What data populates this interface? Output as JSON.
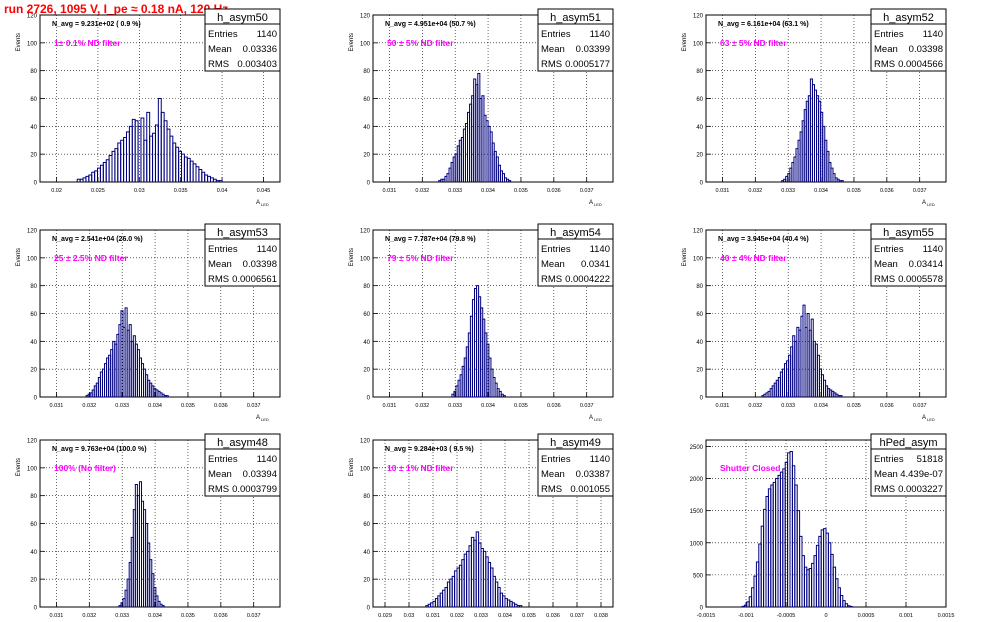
{
  "run_title": "run 2726,  1095 V, I_pe ≈ 0.18 nA, 120 Hz",
  "colors": {
    "hist": "#00007f",
    "annot": "#ff00ff",
    "title": "#ff0000",
    "grid": "#000000"
  },
  "chart_data": [
    {
      "type": "bar",
      "name": "h_asym50",
      "entries": "1140",
      "mean": "0.03336",
      "rms": "0.003403",
      "navg": "N_avg = 9.231e+02 ( 0.9 %)",
      "annotation": "1± 0.1% ND filter",
      "xlabel": "A",
      "xlabel_sub": "LED",
      "ylabel": "Events",
      "xlim": [
        0.018,
        0.047
      ],
      "ylim": [
        0,
        120
      ],
      "xticks": [
        0.02,
        0.025,
        0.03,
        0.035,
        0.04,
        0.045
      ],
      "xtick_labels": [
        "0.02",
        "0.025",
        "0.03",
        "0.035",
        "0.04",
        "0.045"
      ],
      "yticks": [
        0,
        20,
        40,
        60,
        80,
        100,
        120
      ],
      "bins_start": 0.0225,
      "bin_width": 0.00035,
      "values": [
        2,
        2,
        3,
        4,
        5,
        7,
        8,
        10,
        12,
        14,
        16,
        19,
        22,
        24,
        28,
        30,
        32,
        36,
        40,
        45,
        44,
        40,
        46,
        30,
        50,
        33,
        35,
        41,
        60,
        50,
        44,
        38,
        33,
        28,
        25,
        22,
        20,
        18,
        17,
        15,
        13,
        11,
        9,
        7,
        5,
        4,
        3,
        2,
        1,
        1
      ]
    },
    {
      "type": "bar",
      "name": "h_asym51",
      "entries": "1140",
      "mean": "0.03399",
      "rms": "0.0005177",
      "navg": "N_avg = 4.951e+04 (50.7 %)",
      "annotation": "50 ± 5% ND filter",
      "xlabel": "A",
      "xlabel_sub": "LED",
      "ylabel": "Events",
      "xlim": [
        0.0305,
        0.0378
      ],
      "ylim": [
        0,
        120
      ],
      "xticks": [
        0.031,
        0.032,
        0.033,
        0.034,
        0.035,
        0.036,
        0.037
      ],
      "xtick_labels": [
        "0.031",
        "0.032",
        "0.033",
        "0.034",
        "0.035",
        "0.036",
        "0.037"
      ],
      "yticks": [
        0,
        20,
        40,
        60,
        80,
        100,
        120
      ],
      "bins_start": 0.0325,
      "bin_width": 6.25e-05,
      "values": [
        1,
        2,
        2,
        4,
        6,
        10,
        14,
        18,
        20,
        26,
        30,
        32,
        38,
        42,
        50,
        56,
        62,
        74,
        70,
        78,
        60,
        62,
        48,
        44,
        40,
        36,
        28,
        22,
        18,
        12,
        8,
        6,
        3,
        2,
        1
      ]
    },
    {
      "type": "bar",
      "name": "h_asym52",
      "entries": "1140",
      "mean": "0.03398",
      "rms": "0.0004566",
      "navg": "N_avg = 6.161e+04 (63.1 %)",
      "annotation": "63 ± 5% ND filter",
      "xlabel": "A",
      "xlabel_sub": "LED",
      "ylabel": "Events",
      "xlim": [
        0.0305,
        0.0378
      ],
      "ylim": [
        0,
        120
      ],
      "xticks": [
        0.031,
        0.032,
        0.033,
        0.034,
        0.035,
        0.036,
        0.037
      ],
      "xtick_labels": [
        "0.031",
        "0.032",
        "0.033",
        "0.034",
        "0.035",
        "0.036",
        "0.037"
      ],
      "yticks": [
        0,
        20,
        40,
        60,
        80,
        100,
        120
      ],
      "bins_start": 0.0328,
      "bin_width": 6.25e-05,
      "values": [
        1,
        2,
        4,
        6,
        10,
        14,
        18,
        24,
        30,
        36,
        44,
        52,
        58,
        62,
        74,
        70,
        66,
        62,
        58,
        50,
        40,
        30,
        22,
        14,
        10,
        6,
        3,
        2,
        1,
        1
      ]
    },
    {
      "type": "bar",
      "name": "h_asym53",
      "entries": "1140",
      "mean": "0.03398",
      "rms": "0.0006561",
      "navg": "N_avg = 2.541e+04 (26.0 %)",
      "annotation": "25 ± 2.5% ND filter",
      "xlabel": "A",
      "xlabel_sub": "LED",
      "ylabel": "Events",
      "xlim": [
        0.0305,
        0.0378
      ],
      "ylim": [
        0,
        120
      ],
      "xticks": [
        0.031,
        0.032,
        0.033,
        0.034,
        0.035,
        0.036,
        0.037
      ],
      "xtick_labels": [
        "0.031",
        "0.032",
        "0.033",
        "0.034",
        "0.035",
        "0.036",
        "0.037"
      ],
      "yticks": [
        0,
        20,
        40,
        60,
        80,
        100,
        120
      ],
      "bins_start": 0.0319,
      "bin_width": 6.25e-05,
      "values": [
        1,
        2,
        3,
        5,
        8,
        10,
        14,
        18,
        20,
        24,
        28,
        30,
        34,
        40,
        38,
        45,
        52,
        62,
        50,
        64,
        48,
        52,
        40,
        44,
        38,
        34,
        28,
        24,
        20,
        16,
        12,
        10,
        8,
        6,
        5,
        4,
        3,
        2,
        1,
        1
      ]
    },
    {
      "type": "bar",
      "name": "h_asym54",
      "entries": "1140",
      "mean": "0.0341",
      "rms": "0.0004222",
      "navg": "N_avg = 7.787e+04 (79.8 %)",
      "annotation": "79 ± 5% ND filter",
      "xlabel": "A",
      "xlabel_sub": "LED",
      "ylabel": "Events",
      "xlim": [
        0.0305,
        0.0378
      ],
      "ylim": [
        0,
        120
      ],
      "xticks": [
        0.031,
        0.032,
        0.033,
        0.034,
        0.035,
        0.036,
        0.037
      ],
      "xtick_labels": [
        "0.031",
        "0.032",
        "0.033",
        "0.034",
        "0.035",
        "0.036",
        "0.037"
      ],
      "yticks": [
        0,
        20,
        40,
        60,
        80,
        100,
        120
      ],
      "bins_start": 0.0329,
      "bin_width": 6.25e-05,
      "values": [
        2,
        4,
        8,
        12,
        16,
        22,
        28,
        36,
        46,
        58,
        70,
        78,
        80,
        72,
        64,
        56,
        46,
        38,
        28,
        20,
        14,
        10,
        6,
        4,
        2,
        1
      ]
    },
    {
      "type": "bar",
      "name": "h_asym55",
      "entries": "1140",
      "mean": "0.03414",
      "rms": "0.0005578",
      "navg": "N_avg = 3.945e+04 (40.4 %)",
      "annotation": "40 ± 4% ND filter",
      "xlabel": "A",
      "xlabel_sub": "LED",
      "ylabel": "Events",
      "xlim": [
        0.0305,
        0.0378
      ],
      "ylim": [
        0,
        120
      ],
      "xticks": [
        0.031,
        0.032,
        0.033,
        0.034,
        0.035,
        0.036,
        0.037
      ],
      "xtick_labels": [
        "0.031",
        "0.032",
        "0.033",
        "0.034",
        "0.035",
        "0.036",
        "0.037"
      ],
      "yticks": [
        0,
        20,
        40,
        60,
        80,
        100,
        120
      ],
      "bins_start": 0.0322,
      "bin_width": 6.25e-05,
      "values": [
        1,
        2,
        3,
        4,
        6,
        8,
        10,
        12,
        14,
        18,
        20,
        24,
        26,
        30,
        36,
        44,
        40,
        50,
        48,
        58,
        66,
        50,
        60,
        48,
        56,
        40,
        38,
        30,
        20,
        16,
        12,
        8,
        6,
        5,
        4,
        3,
        2,
        1,
        1
      ]
    },
    {
      "type": "bar",
      "name": "h_asym48",
      "entries": "1140",
      "mean": "0.03394",
      "rms": "0.0003799",
      "navg": "N_avg = 9.763e+04 (100.0 %)",
      "annotation": "100% (No filter)",
      "xlabel": "A",
      "xlabel_sub": "LED",
      "ylabel": "Events",
      "xlim": [
        0.0305,
        0.0378
      ],
      "ylim": [
        0,
        120
      ],
      "xticks": [
        0.031,
        0.032,
        0.033,
        0.034,
        0.035,
        0.036,
        0.037
      ],
      "xtick_labels": [
        "0.031",
        "0.032",
        "0.033",
        "0.034",
        "0.035",
        "0.036",
        "0.037"
      ],
      "yticks": [
        0,
        20,
        40,
        60,
        80,
        100,
        120
      ],
      "bins_start": 0.0329,
      "bin_width": 6.25e-05,
      "values": [
        1,
        3,
        6,
        12,
        20,
        32,
        50,
        70,
        88,
        80,
        90,
        76,
        70,
        60,
        46,
        34,
        24,
        14,
        8,
        4,
        2,
        1
      ]
    },
    {
      "type": "bar",
      "name": "h_asym49",
      "entries": "1140",
      "mean": "0.03387",
      "rms": "0.001055",
      "navg": "N_avg = 9.284e+03 ( 9.5 %)",
      "annotation": "10 ± 1% ND filter",
      "xlabel": "A",
      "xlabel_sub": "LED",
      "ylabel": "Events",
      "xlim": [
        0.0285,
        0.0385
      ],
      "ylim": [
        0,
        120
      ],
      "xticks": [
        0.029,
        0.03,
        0.031,
        0.032,
        0.033,
        0.034,
        0.035,
        0.036,
        0.037,
        0.038
      ],
      "xtick_labels": [
        "0.029",
        "0.03",
        "0.031",
        "0.032",
        "0.033",
        "0.034",
        "0.035",
        "0.036",
        "0.037",
        "0.038"
      ],
      "yticks": [
        0,
        20,
        40,
        60,
        80,
        100,
        120
      ],
      "bins_start": 0.0307,
      "bin_width": 0.0001,
      "values": [
        1,
        2,
        3,
        4,
        6,
        8,
        10,
        12,
        14,
        18,
        20,
        22,
        26,
        28,
        30,
        34,
        38,
        40,
        44,
        50,
        48,
        54,
        46,
        42,
        40,
        36,
        32,
        28,
        22,
        18,
        14,
        10,
        8,
        6,
        5,
        4,
        3,
        2,
        1,
        1
      ]
    },
    {
      "type": "bar",
      "name": "hPed_asym",
      "entries": "51818",
      "mean": "4.439e-07",
      "rms": "0.0003227",
      "navg": "",
      "annotation": "Shutter Closed",
      "xlabel": "",
      "xlabel_sub": "",
      "ylabel": "",
      "xlim": [
        -0.0015,
        0.0015
      ],
      "ylim": [
        0,
        2600
      ],
      "xticks": [
        -0.0015,
        -0.001,
        -0.0005,
        0,
        0.0005,
        0.001,
        0.0015
      ],
      "xtick_labels": [
        "-0.0015",
        "-0.001",
        "-0.0005",
        "0",
        "0.0005",
        "0.001",
        "0.0015"
      ],
      "yticks": [
        0,
        500,
        1000,
        1500,
        2000,
        2500
      ],
      "bins_start": -0.00105,
      "bin_width": 3e-05,
      "values": [
        10,
        30,
        80,
        160,
        300,
        480,
        700,
        980,
        1260,
        1520,
        1720,
        1840,
        1900,
        1940,
        2000,
        2050,
        2100,
        2150,
        2250,
        2400,
        2420,
        2200,
        1900,
        1500,
        1100,
        800,
        620,
        580,
        600,
        680,
        800,
        960,
        1100,
        1200,
        1220,
        1150,
        1000,
        820,
        620,
        440,
        300,
        180,
        100,
        50,
        20,
        8
      ]
    }
  ]
}
